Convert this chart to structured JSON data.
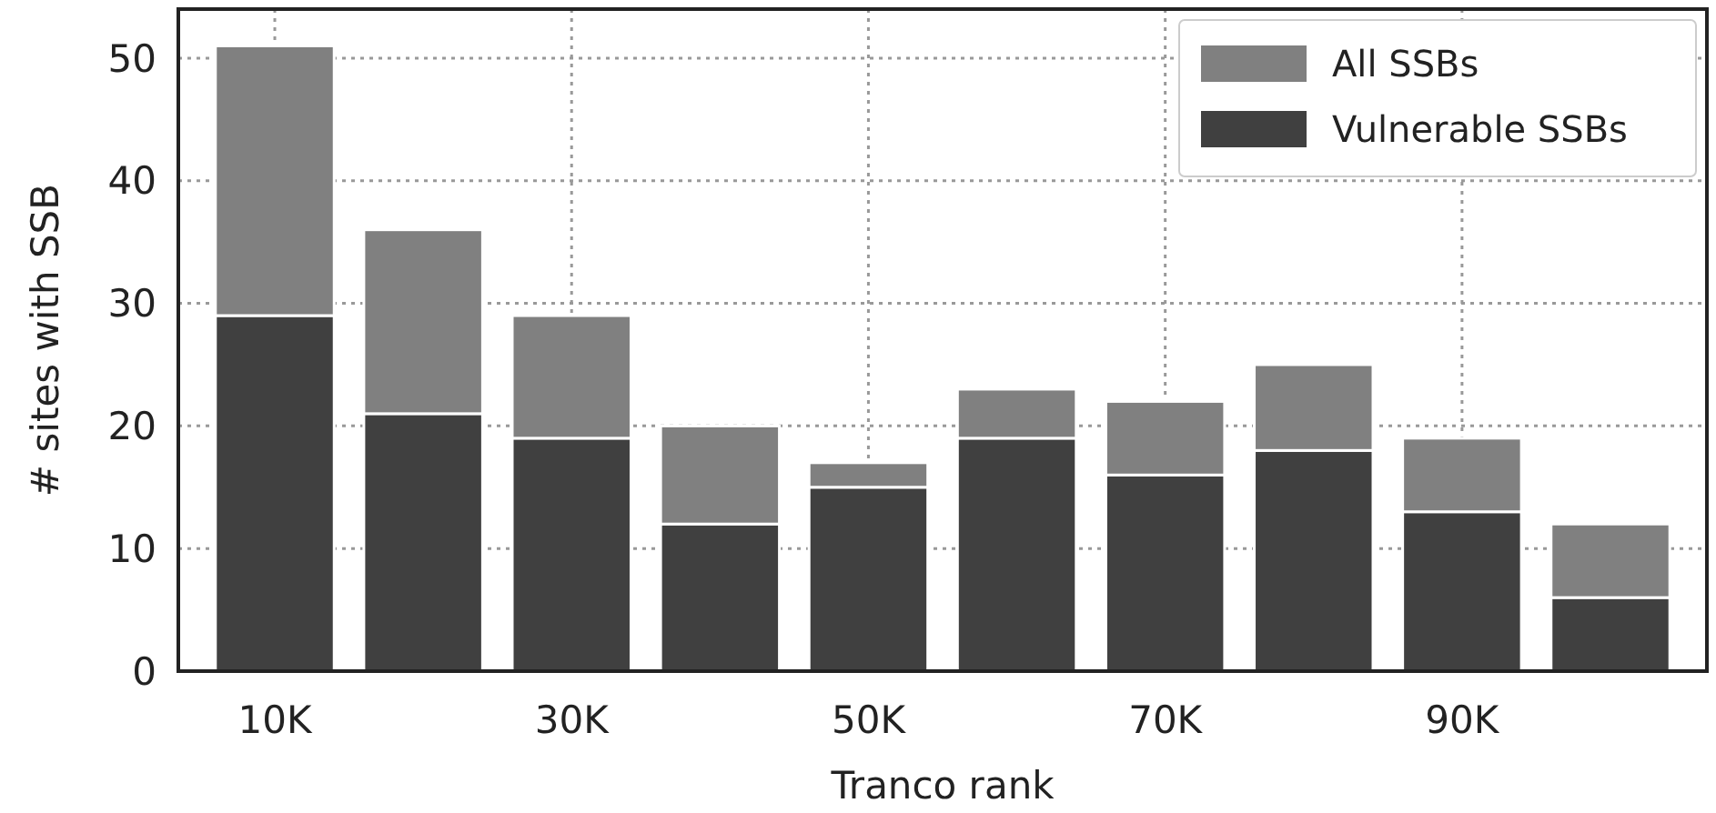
{
  "chart_data": {
    "type": "bar",
    "stacked": true,
    "xlabel": "Tranco rank",
    "ylabel": "# sites with SSB",
    "categories": [
      "10K",
      null,
      "30K",
      null,
      "50K",
      null,
      "70K",
      null,
      "90K",
      null
    ],
    "series": [
      {
        "name": "Vulnerable SSBs",
        "color": "#404040",
        "values": [
          29,
          21,
          19,
          12,
          15,
          19,
          16,
          18,
          13,
          6
        ]
      },
      {
        "name": "All SSBs",
        "color": "#808080",
        "values": [
          22,
          15,
          10,
          8,
          2,
          4,
          6,
          7,
          6,
          6
        ]
      }
    ],
    "ylim": [
      0,
      54
    ],
    "yticks": [
      0,
      10,
      20,
      30,
      40,
      50
    ],
    "grid": true,
    "legend": "top right"
  }
}
